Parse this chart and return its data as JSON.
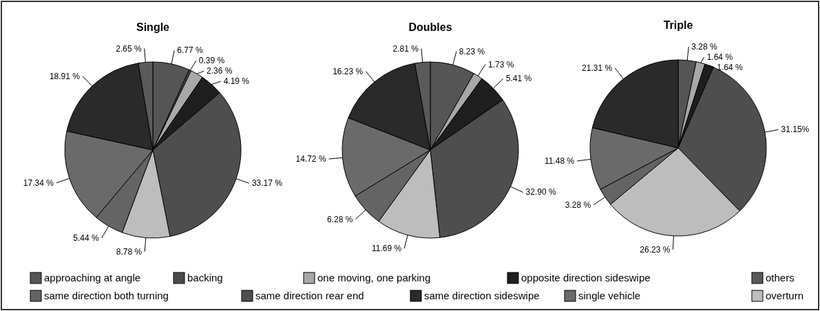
{
  "chart_data": [
    {
      "type": "pie",
      "title": "Single",
      "legend": "bottom",
      "categories": [
        "approaching at angle",
        "backing",
        "one moving, one parking",
        "opposite direction sideswipe",
        "same direction rear end",
        "overturn",
        "same direction both turning",
        "single vehicle",
        "same direction sideswipe",
        "others"
      ],
      "values": [
        6.77,
        0.39,
        2.36,
        4.19,
        33.17,
        8.78,
        5.44,
        17.34,
        18.91,
        2.65
      ],
      "value_labels": [
        "6.77 %",
        "0.39 %",
        "2.36 %",
        "4.19 %",
        "33.17 %",
        "8.78 %",
        "5.44 %",
        "17.34 %",
        "18.91 %",
        "2.65 %"
      ],
      "colors": [
        "#555555",
        "#4a4a4a",
        "#a8a8a8",
        "#1e1e1e",
        "#4e4e4e",
        "#bdbdbd",
        "#646464",
        "#6a6a6a",
        "#2a2a2a",
        "#5a5a5a"
      ]
    },
    {
      "type": "pie",
      "title": "Doubles",
      "values": [
        8.23,
        0,
        1.73,
        5.41,
        32.9,
        11.69,
        6.28,
        14.72,
        16.23,
        2.81
      ],
      "value_labels": [
        "8.23 %",
        null,
        "1.73 %",
        "5.41 %",
        "32.90 %",
        "11.69 %",
        "6.28 %",
        "14.72 %",
        "16.23 %",
        "2.81 %"
      ],
      "colors": [
        "#555555",
        null,
        "#a8a8a8",
        "#1e1e1e",
        "#4e4e4e",
        "#bdbdbd",
        "#646464",
        "#6a6a6a",
        "#2a2a2a",
        "#5a5a5a"
      ]
    },
    {
      "type": "pie",
      "title": "Triple",
      "values": [
        3.28,
        0,
        1.64,
        1.64,
        31.15,
        26.23,
        3.28,
        11.48,
        21.31,
        0
      ],
      "value_labels": [
        "3.28 %",
        null,
        "1.64 %",
        "1.64 %",
        "31.15%",
        "26.23 %",
        "3.28 %",
        "11.48 %",
        "21.31 %",
        null
      ],
      "colors": [
        "#555555",
        null,
        "#a8a8a8",
        "#1e1e1e",
        "#4e4e4e",
        "#bdbdbd",
        "#646464",
        "#6a6a6a",
        "#2a2a2a",
        null
      ]
    }
  ]
}
